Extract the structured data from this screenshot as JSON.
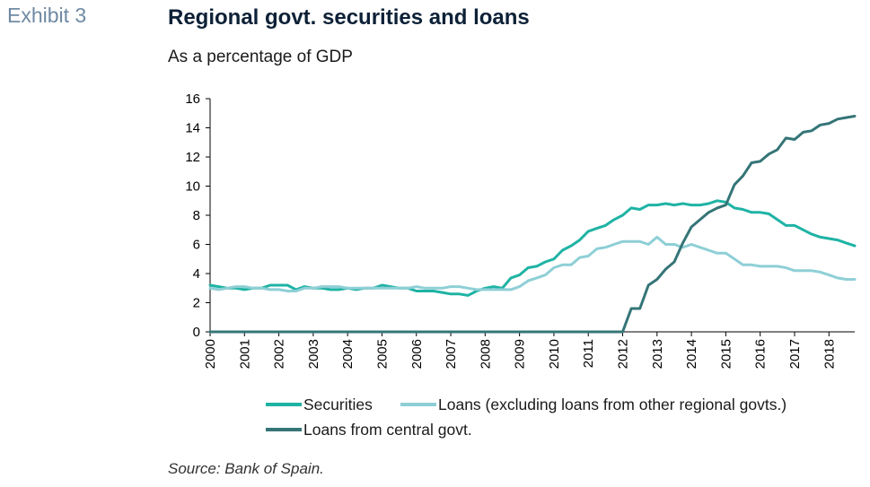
{
  "header": {
    "exhibit": "Exhibit 3",
    "title": "Regional govt. securities and loans",
    "subtitle": "As a percentage of GDP"
  },
  "footer": {
    "source": "Source: Bank of Spain."
  },
  "chart_data": {
    "type": "line",
    "title": "Regional govt. securities and loans",
    "subtitle": "As a percentage of GDP",
    "ylim": [
      0,
      16
    ],
    "yticks": [
      0,
      2,
      4,
      6,
      8,
      10,
      12,
      14,
      16
    ],
    "xlim": [
      2000,
      2018.75
    ],
    "xticks": [
      2000,
      2001,
      2002,
      2003,
      2004,
      2005,
      2006,
      2007,
      2008,
      2009,
      2010,
      2011,
      2012,
      2013,
      2014,
      2015,
      2016,
      2017,
      2018
    ],
    "grid": false,
    "legend_position": "bottom",
    "series": [
      {
        "name": "Securities",
        "color": "#1fb3a4",
        "x": [
          2000,
          2000.25,
          2000.5,
          2000.75,
          2001,
          2001.25,
          2001.5,
          2001.75,
          2002,
          2002.25,
          2002.5,
          2002.75,
          2003,
          2003.25,
          2003.5,
          2003.75,
          2004,
          2004.25,
          2004.5,
          2004.75,
          2005,
          2005.25,
          2005.5,
          2005.75,
          2006,
          2006.25,
          2006.5,
          2006.75,
          2007,
          2007.25,
          2007.5,
          2007.75,
          2008,
          2008.25,
          2008.5,
          2008.75,
          2009,
          2009.25,
          2009.5,
          2009.75,
          2010,
          2010.25,
          2010.5,
          2010.75,
          2011,
          2011.25,
          2011.5,
          2011.75,
          2012,
          2012.25,
          2012.5,
          2012.75,
          2013,
          2013.25,
          2013.5,
          2013.75,
          2014,
          2014.25,
          2014.5,
          2014.75,
          2015,
          2015.25,
          2015.5,
          2015.75,
          2016,
          2016.25,
          2016.5,
          2016.75,
          2017,
          2017.25,
          2017.5,
          2017.75,
          2018,
          2018.25,
          2018.5,
          2018.75
        ],
        "values": [
          3.2,
          3.1,
          3.0,
          3.0,
          2.9,
          3.0,
          3.0,
          3.2,
          3.2,
          3.2,
          2.9,
          3.1,
          3.0,
          3.0,
          2.9,
          2.9,
          3.0,
          2.9,
          3.0,
          3.0,
          3.2,
          3.1,
          3.0,
          3.0,
          2.8,
          2.8,
          2.8,
          2.7,
          2.6,
          2.6,
          2.5,
          2.8,
          3.0,
          3.1,
          3.0,
          3.7,
          3.9,
          4.4,
          4.5,
          4.8,
          5.0,
          5.6,
          5.9,
          6.3,
          6.9,
          7.1,
          7.3,
          7.7,
          8.0,
          8.5,
          8.4,
          8.7,
          8.7,
          8.8,
          8.7,
          8.8,
          8.7,
          8.7,
          8.8,
          9.0,
          8.9,
          8.5,
          8.4,
          8.2,
          8.2,
          8.1,
          7.7,
          7.3,
          7.3,
          7.0,
          6.7,
          6.5,
          6.4,
          6.3,
          6.1,
          5.9
        ]
      },
      {
        "name": "Loans (excluding loans from other regional govts.)",
        "color": "#8ecfd6",
        "x": [
          2000,
          2000.25,
          2000.5,
          2000.75,
          2001,
          2001.25,
          2001.5,
          2001.75,
          2002,
          2002.25,
          2002.5,
          2002.75,
          2003,
          2003.25,
          2003.5,
          2003.75,
          2004,
          2004.25,
          2004.5,
          2004.75,
          2005,
          2005.25,
          2005.5,
          2005.75,
          2006,
          2006.25,
          2006.5,
          2006.75,
          2007,
          2007.25,
          2007.5,
          2007.75,
          2008,
          2008.25,
          2008.5,
          2008.75,
          2009,
          2009.25,
          2009.5,
          2009.75,
          2010,
          2010.25,
          2010.5,
          2010.75,
          2011,
          2011.25,
          2011.5,
          2011.75,
          2012,
          2012.25,
          2012.5,
          2012.75,
          2013,
          2013.25,
          2013.5,
          2013.75,
          2014,
          2014.25,
          2014.5,
          2014.75,
          2015,
          2015.25,
          2015.5,
          2015.75,
          2016,
          2016.25,
          2016.5,
          2016.75,
          2017,
          2017.25,
          2017.5,
          2017.75,
          2018,
          2018.25,
          2018.5,
          2018.75
        ],
        "values": [
          3.0,
          2.9,
          3.0,
          3.1,
          3.1,
          3.0,
          3.0,
          2.9,
          2.9,
          2.8,
          2.8,
          3.0,
          3.0,
          3.1,
          3.1,
          3.1,
          3.0,
          3.0,
          3.0,
          3.0,
          3.0,
          3.0,
          3.0,
          3.0,
          3.1,
          3.0,
          3.0,
          3.0,
          3.1,
          3.1,
          3.0,
          2.9,
          2.9,
          2.9,
          2.9,
          2.9,
          3.1,
          3.5,
          3.7,
          3.9,
          4.4,
          4.6,
          4.6,
          5.1,
          5.2,
          5.7,
          5.8,
          6.0,
          6.2,
          6.2,
          6.2,
          6.0,
          6.5,
          6.0,
          6.0,
          5.8,
          6.0,
          5.8,
          5.6,
          5.4,
          5.4,
          5.0,
          4.6,
          4.6,
          4.5,
          4.5,
          4.5,
          4.4,
          4.2,
          4.2,
          4.2,
          4.1,
          3.9,
          3.7,
          3.6,
          3.6
        ]
      },
      {
        "name": "Loans from central govt.",
        "color": "#357577",
        "x": [
          2000,
          2012,
          2012.25,
          2012.5,
          2012.75,
          2013,
          2013.25,
          2013.5,
          2013.75,
          2014,
          2014.25,
          2014.5,
          2014.75,
          2015,
          2015.25,
          2015.5,
          2015.75,
          2016,
          2016.25,
          2016.5,
          2016.75,
          2017,
          2017.25,
          2017.5,
          2017.75,
          2018,
          2018.25,
          2018.5,
          2018.75
        ],
        "values": [
          0,
          0,
          1.6,
          1.6,
          3.2,
          3.6,
          4.3,
          4.8,
          6.1,
          7.2,
          7.7,
          8.2,
          8.5,
          8.7,
          10.1,
          10.7,
          11.6,
          11.7,
          12.2,
          12.5,
          13.3,
          13.2,
          13.7,
          13.8,
          14.2,
          14.3,
          14.6,
          14.7,
          14.8
        ]
      }
    ]
  }
}
